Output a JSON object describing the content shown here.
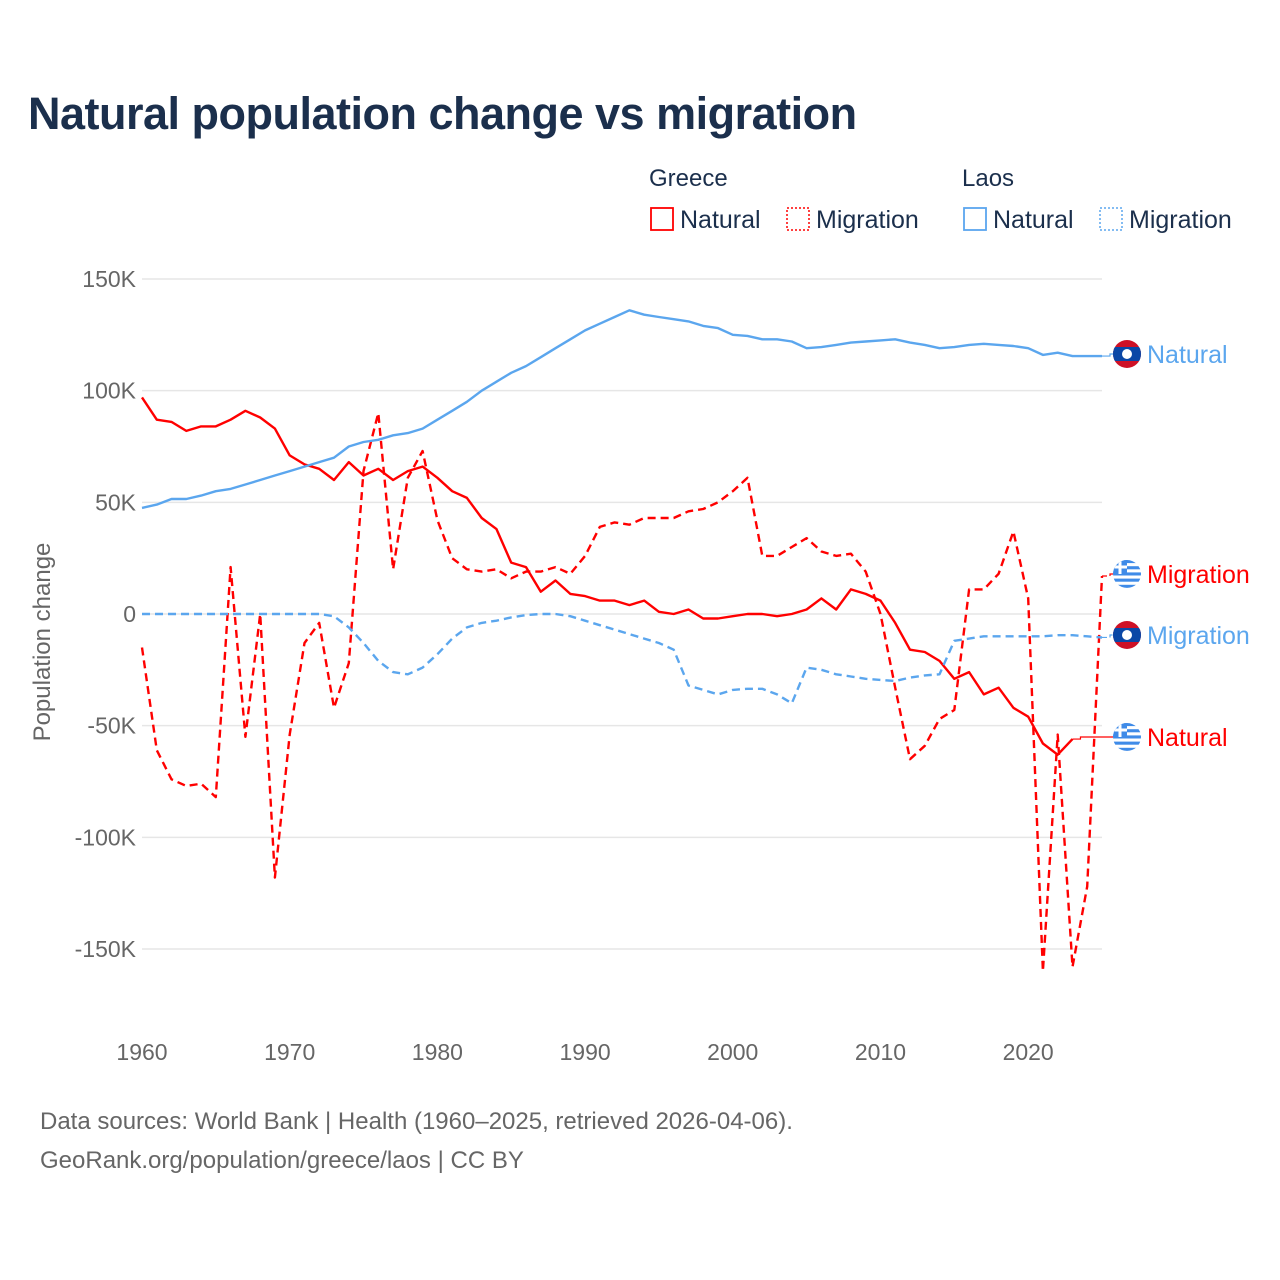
{
  "title": "Natural population change vs migration",
  "footer": {
    "line1": "Data sources: World Bank | Health (1960–2025, retrieved 2026-04-06).",
    "line2": "GeoRank.org/population/greece/laos | CC BY"
  },
  "colors": {
    "greece": "#ff0000",
    "laos": "#5ba6ee",
    "title": "#1b2f4c",
    "grid": "#e6e6e6",
    "tick": "#666666"
  },
  "legend": {
    "groups": [
      {
        "country": "Greece",
        "items": [
          {
            "label": "Natural",
            "style": "solid"
          },
          {
            "label": "Migration",
            "style": "dotted"
          }
        ]
      },
      {
        "country": "Laos",
        "items": [
          {
            "label": "Natural",
            "style": "solid"
          },
          {
            "label": "Migration",
            "style": "dotted"
          }
        ]
      }
    ]
  },
  "chart_data": {
    "type": "line",
    "title": "Natural population change vs migration",
    "xlabel": "",
    "ylabel": "Population change",
    "xlim": [
      1960,
      2025
    ],
    "ylim": [
      -165000,
      150000
    ],
    "x_ticks": [
      1960,
      1970,
      1980,
      1990,
      2000,
      2010,
      2020
    ],
    "x_tick_labels": [
      "1960",
      "1970",
      "1980",
      "1990",
      "2000",
      "2010",
      "2020"
    ],
    "y_ticks": [
      150000,
      100000,
      50000,
      0,
      -50000,
      -100000,
      -150000
    ],
    "y_tick_labels": [
      "150K",
      "100K",
      "50K",
      "0",
      "-50K",
      "-100K",
      "-150K"
    ],
    "grid": true,
    "legend_position": "top-right",
    "series": [
      {
        "name": "Greece Natural",
        "country": "Greece",
        "flag": "greece",
        "label": "Natural",
        "dash": false,
        "start_year": 1960,
        "values": [
          97,
          87,
          86,
          82,
          84,
          84,
          87,
          91,
          88,
          83,
          71,
          67,
          65,
          60,
          68,
          62,
          65,
          60,
          64,
          66,
          61,
          55,
          52,
          43,
          38,
          23,
          21,
          10,
          15,
          9,
          8,
          6,
          6,
          4,
          6,
          1,
          0,
          2,
          -2,
          -2,
          -1,
          0,
          0,
          -1,
          0,
          2,
          7,
          2,
          11,
          9,
          6,
          -4,
          -16,
          -17,
          -21,
          -29,
          -26,
          -36,
          -33,
          -42,
          -46,
          -58,
          -63,
          -56
        ]
      },
      {
        "name": "Greece Migration",
        "country": "Greece",
        "flag": "greece",
        "label": "Migration",
        "dash": true,
        "start_year": 1960,
        "values": [
          -15,
          -61,
          -74,
          -77,
          -76,
          -82,
          21,
          -55,
          0,
          -118,
          -54,
          -13,
          -4,
          -42,
          -22,
          64,
          90,
          20,
          61,
          73,
          42,
          25,
          20,
          19,
          20,
          16,
          19,
          19,
          21,
          18,
          26,
          39,
          41,
          40,
          43,
          43,
          43,
          46,
          47,
          50,
          55,
          61,
          26,
          26,
          30,
          34,
          28,
          26,
          27,
          19,
          0,
          -33,
          -65,
          -59,
          -47,
          -43,
          11,
          11,
          18,
          37,
          7,
          -160,
          -54,
          -158,
          -122,
          17
        ]
      },
      {
        "name": "Laos Natural",
        "country": "Laos",
        "flag": "laos",
        "label": "Natural",
        "dash": false,
        "start_year": 1960,
        "values": [
          47.5,
          49,
          51.5,
          51.5,
          53,
          55,
          56,
          58,
          60,
          62,
          64,
          66,
          68,
          70,
          75,
          77,
          78,
          80,
          81,
          83,
          87,
          91,
          95,
          100,
          104,
          108,
          111,
          115,
          119,
          123,
          127,
          130,
          133,
          136,
          134,
          133,
          132,
          131,
          129,
          128,
          125,
          124.5,
          123,
          123,
          122,
          119,
          119.5,
          120.5,
          121.5,
          122,
          122.5,
          123,
          121.5,
          120.5,
          119,
          119.5,
          120.5,
          121,
          120.5,
          120,
          119,
          116,
          117,
          115.5,
          115.5,
          115.5
        ]
      },
      {
        "name": "Laos Migration",
        "country": "Laos",
        "flag": "laos",
        "label": "Migration",
        "dash": true,
        "start_year": 1960,
        "values": [
          0,
          0,
          0,
          0,
          0,
          0,
          0,
          0,
          0,
          0,
          0,
          0,
          0,
          -1,
          -6,
          -13,
          -21,
          -26,
          -27,
          -24,
          -18,
          -11,
          -6,
          -4,
          -3,
          -1.5,
          -0.5,
          0,
          0,
          -1,
          -3,
          -5,
          -7,
          -9,
          -11,
          -13,
          -16,
          -32,
          -34,
          -36,
          -34,
          -33.5,
          -33.5,
          -36,
          -40,
          -24,
          -25,
          -27,
          -28,
          -29,
          -29.5,
          -30,
          -28.5,
          -27.5,
          -27,
          -12,
          -11,
          -10,
          -10,
          -10,
          -10,
          -10,
          -9.5,
          -9.5,
          -10,
          -10.5
        ]
      }
    ],
    "value_unit": "thousands"
  }
}
